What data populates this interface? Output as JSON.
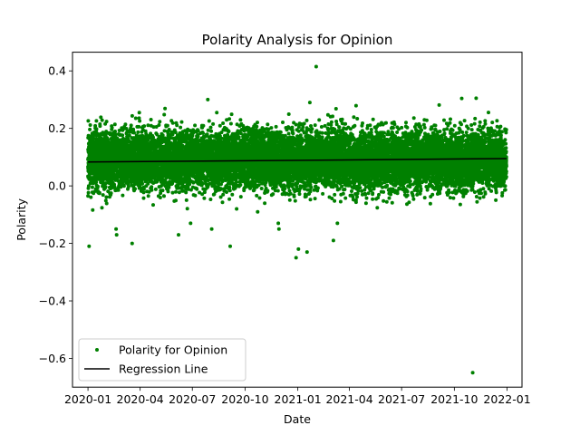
{
  "chart_data": {
    "type": "scatter",
    "title": "Polarity Analysis for Opinion",
    "xlabel": "Date",
    "ylabel": "Polarity",
    "x_range": [
      "2019-12-05",
      "2022-01-27"
    ],
    "ylim": [
      -0.7,
      0.465
    ],
    "x_ticks": [
      "2020-01",
      "2020-04",
      "2020-07",
      "2020-10",
      "2021-01",
      "2021-04",
      "2021-07",
      "2021-10",
      "2022-01"
    ],
    "y_ticks": [
      -0.6,
      -0.4,
      -0.2,
      0.0,
      0.2,
      0.4
    ],
    "grid": false,
    "legend_position": "lower-left",
    "colors": {
      "points": "#008000",
      "regression": "#000000"
    },
    "series": [
      {
        "name": "Polarity for Opinion",
        "kind": "scatter",
        "x_start": "2020-01-01",
        "x_end": "2021-12-31",
        "mean": 0.09,
        "spread": 0.05,
        "count": 14000,
        "outliers": [
          {
            "x": "2020-01-03",
            "y": -0.21
          },
          {
            "x": "2020-02-19",
            "y": -0.15
          },
          {
            "x": "2020-02-20",
            "y": -0.17
          },
          {
            "x": "2020-03-18",
            "y": -0.2
          },
          {
            "x": "2020-06-07",
            "y": -0.17
          },
          {
            "x": "2020-06-28",
            "y": -0.13
          },
          {
            "x": "2020-07-28",
            "y": 0.3
          },
          {
            "x": "2020-09-05",
            "y": -0.21
          },
          {
            "x": "2020-10-23",
            "y": -0.09
          },
          {
            "x": "2020-11-28",
            "y": -0.13
          },
          {
            "x": "2020-11-29",
            "y": -0.15
          },
          {
            "x": "2020-12-29",
            "y": -0.25
          },
          {
            "x": "2021-01-02",
            "y": -0.22
          },
          {
            "x": "2021-01-17",
            "y": -0.23
          },
          {
            "x": "2021-01-22",
            "y": 0.29
          },
          {
            "x": "2021-02-02",
            "y": 0.415
          },
          {
            "x": "2021-03-04",
            "y": -0.19
          },
          {
            "x": "2021-03-11",
            "y": -0.13
          },
          {
            "x": "2021-11-02",
            "y": -0.65
          },
          {
            "x": "2021-11-08",
            "y": 0.305
          }
        ]
      },
      {
        "name": "Regression Line",
        "kind": "line",
        "x": [
          "2020-01-01",
          "2021-12-31"
        ],
        "y": [
          0.083,
          0.095
        ]
      }
    ]
  }
}
